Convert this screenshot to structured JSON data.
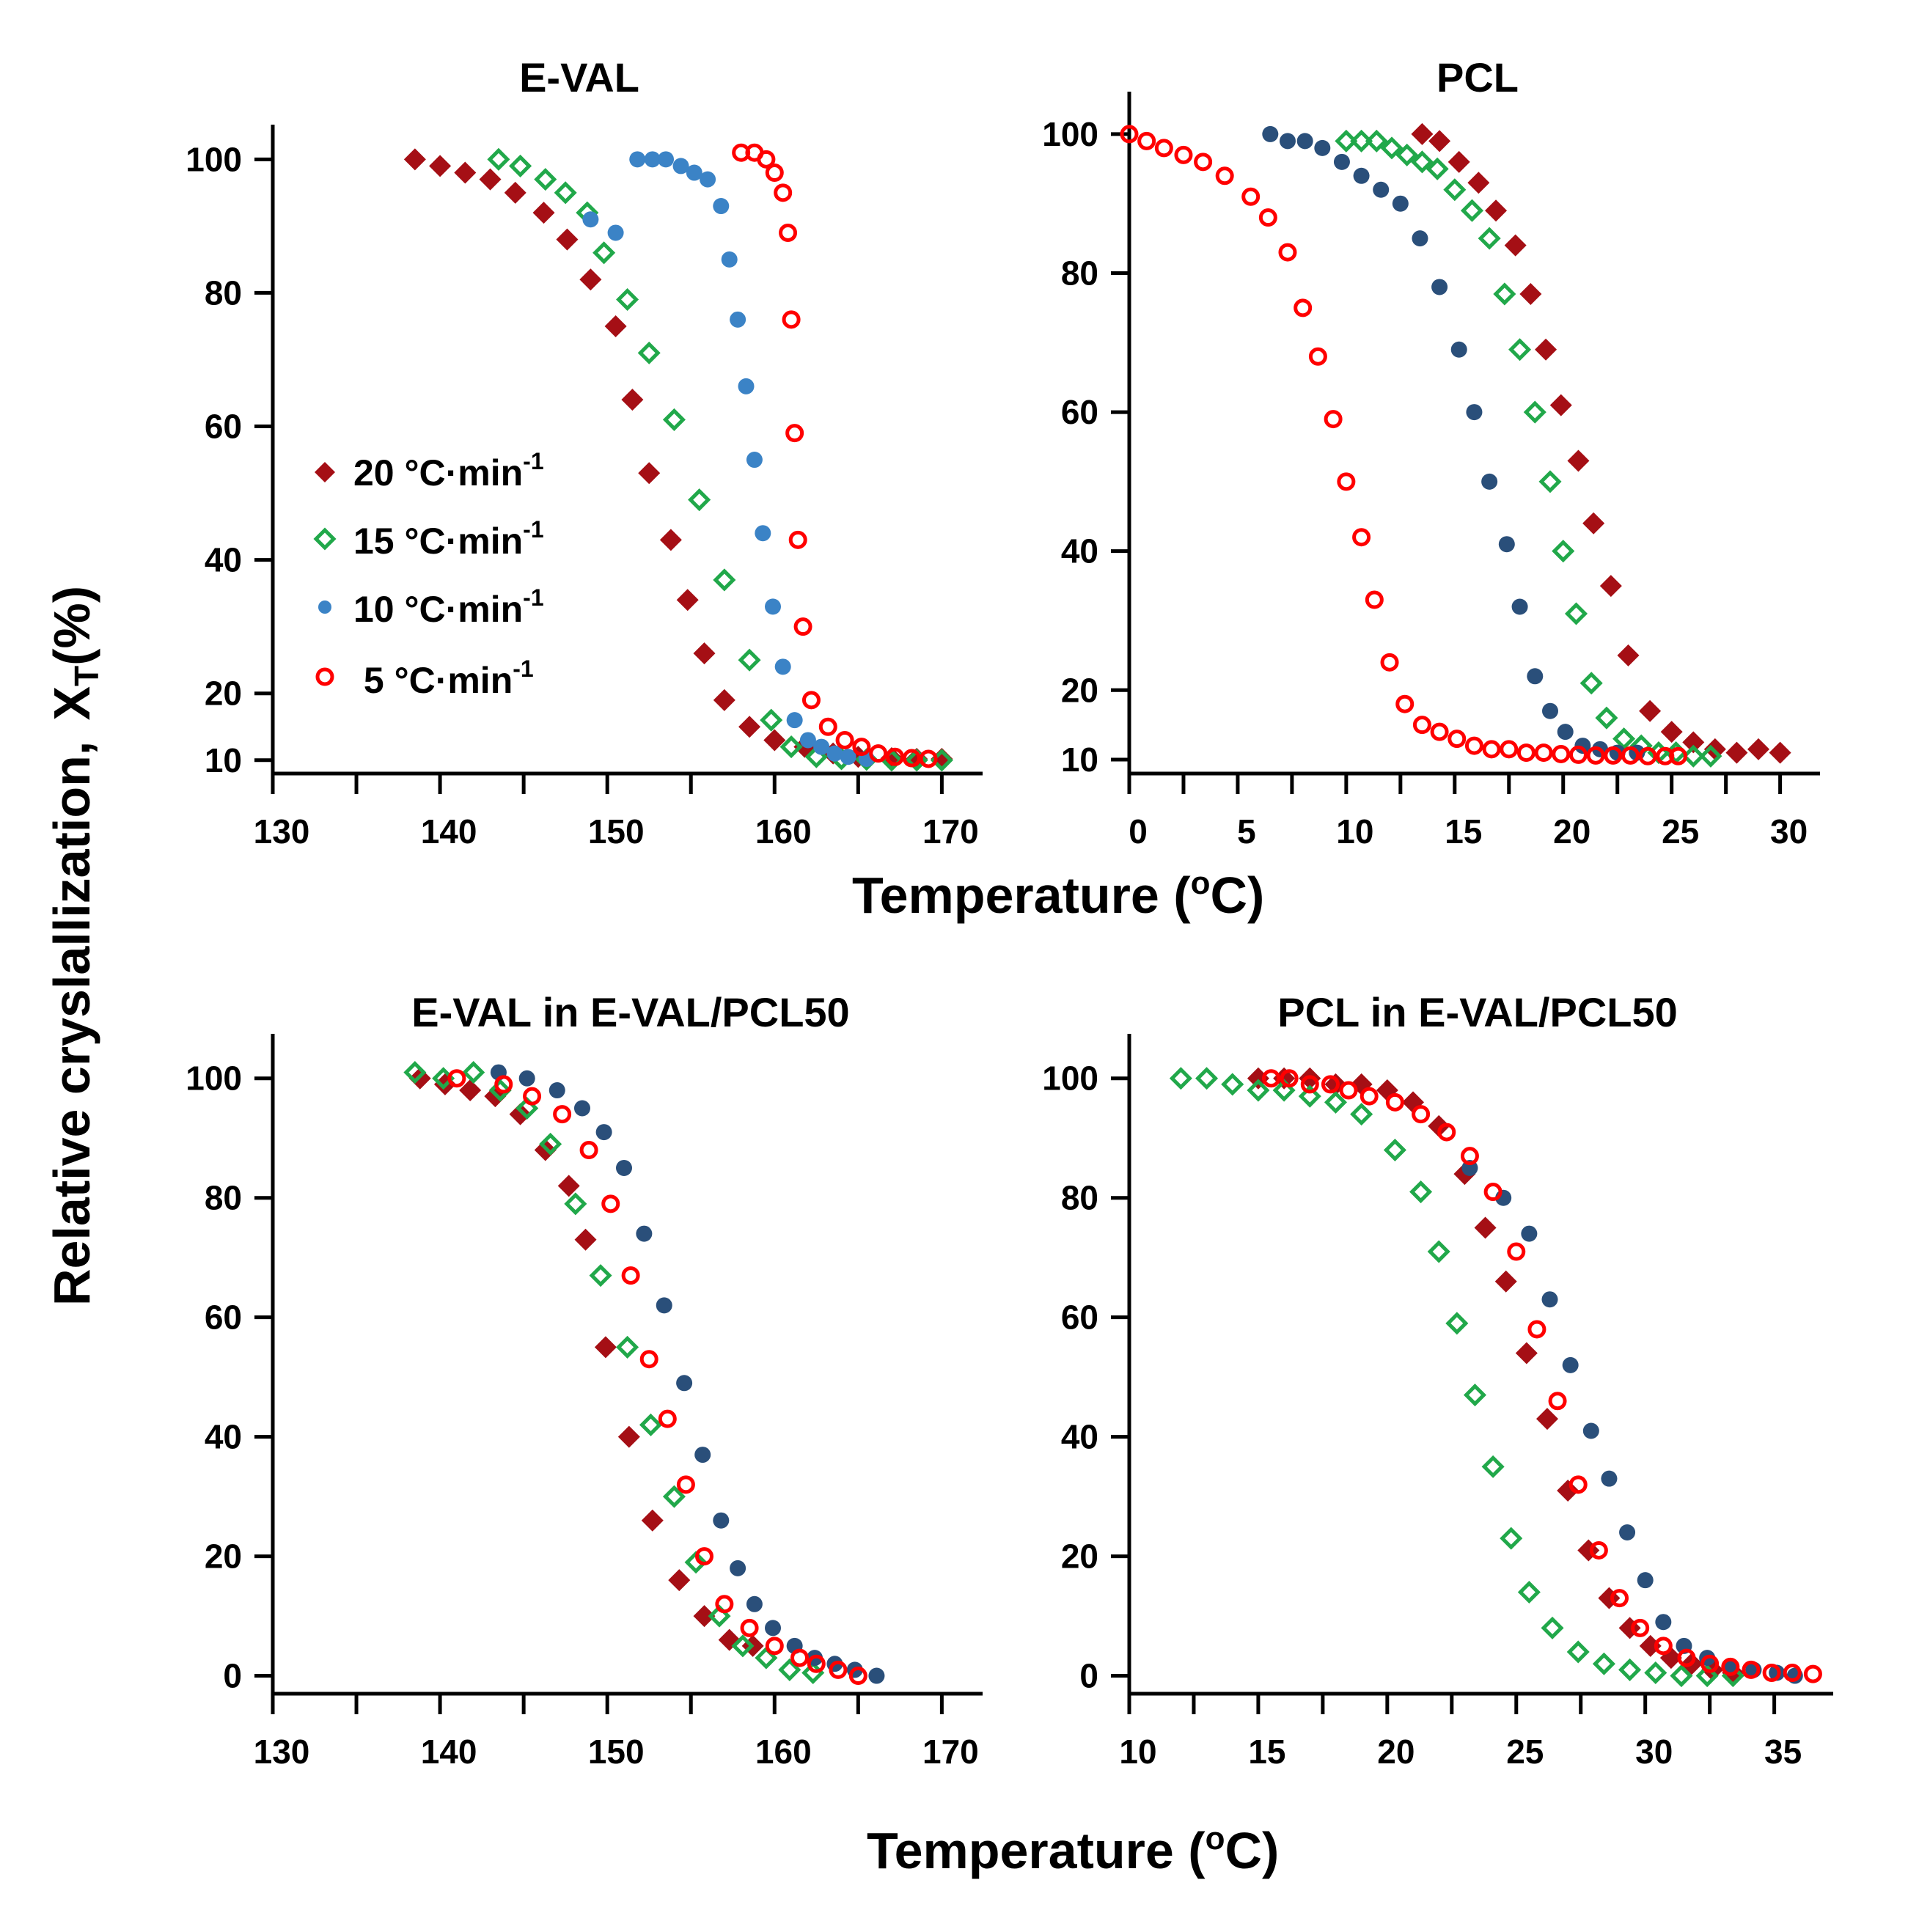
{
  "chart_data": {
    "type": "scatter",
    "ylabel_main": "Relative cryslallization,",
    "ylabel_symbol": "X",
    "ylabel_sub": "T",
    "ylabel_unit": "(%)",
    "xlabel_top": "Temperature (",
    "xlabel_bottom": "Temperature (",
    "xlabel_sup": "o",
    "xlabel_end": "C)",
    "legend": [
      {
        "label": "20 °C·min",
        "exp": "-1",
        "marker": "diamond",
        "color": "#a50f15"
      },
      {
        "label": "15 °C·min",
        "exp": "-1",
        "marker": "diamond-open",
        "color": "#21a84a"
      },
      {
        "label": "10 °C·min",
        "exp": "-1",
        "marker": "dot",
        "color": "#3b83c6"
      },
      {
        "label": " 5 °C·min",
        "exp": "-1",
        "marker": "circle-open",
        "color": "#ff0000"
      }
    ],
    "panels": [
      {
        "title": "E-VAL",
        "xlim": [
          130,
          172
        ],
        "ylim": [
          8,
          103
        ],
        "xticks": [
          130,
          140,
          150,
          160,
          170
        ],
        "xticklabels": [
          "130",
          "140",
          "150",
          "160",
          "170"
        ],
        "yticks": [
          10,
          20,
          40,
          60,
          80,
          100
        ],
        "yticklabels": [
          "10",
          "20",
          "40",
          "60",
          "80",
          "100"
        ],
        "series": [
          {
            "name": "20 °C·min-1",
            "marker": "diamond",
            "color": "#a50f15",
            "x": [
              138.5,
              140,
              141.5,
              143,
              144.5,
              146.2,
              147.6,
              149,
              150.5,
              151.5,
              152.5,
              153.8,
              154.8,
              155.8,
              157,
              158.5,
              160,
              161.8,
              163.5,
              165,
              167,
              168.5,
              170
            ],
            "y": [
              100,
              99,
              98,
              97,
              95,
              92,
              88,
              82,
              75,
              64,
              53,
              43,
              34,
              26,
              19,
              15,
              13,
              12,
              11,
              10.5,
              10.3,
              10.2,
              10.2
            ]
          },
          {
            "name": "15 °C·min-1",
            "marker": "diamond-open",
            "color": "#21a84a",
            "x": [
              143.5,
              144.8,
              146.3,
              147.5,
              148.8,
              149.8,
              151.2,
              152.5,
              154,
              155.5,
              157,
              158.5,
              159.8,
              161,
              162.5,
              164,
              165.5,
              167,
              168.5,
              170
            ],
            "y": [
              100,
              99,
              97,
              95,
              92,
              86,
              79,
              71,
              61,
              49,
              37,
              25,
              16,
              12,
              10.5,
              10.2,
              10.1,
              10,
              10,
              10
            ]
          },
          {
            "name": "10 °C·min-1",
            "marker": "dot",
            "color": "#3b83c6",
            "x": [
              149,
              150.5,
              151.8,
              152.7,
              153.5,
              154.4,
              155.2,
              156,
              156.8,
              157.3,
              157.8,
              158.3,
              158.8,
              159.3,
              159.9,
              160.5,
              161.2,
              162,
              162.8,
              163.6,
              164.4,
              165.5
            ],
            "y": [
              91,
              89,
              100,
              100,
              100,
              99,
              98,
              97,
              93,
              85,
              76,
              66,
              55,
              44,
              33,
              24,
              16,
              13,
              12,
              11,
              10.5,
              10.2
            ]
          },
          {
            "name": "5 °C·min-1",
            "marker": "circle-open",
            "color": "#ff0000",
            "x": [
              158,
              158.8,
              159.5,
              160,
              160.5,
              160.8,
              161,
              161.2,
              161.4,
              161.7,
              162.2,
              163.2,
              164.2,
              165.2,
              166.2,
              167.2,
              168.2,
              169.2
            ],
            "y": [
              101,
              101,
              100,
              98,
              95,
              89,
              76,
              59,
              43,
              30,
              19,
              15,
              13,
              12,
              11,
              10.5,
              10.3,
              10.2
            ]
          }
        ]
      },
      {
        "title": "PCL",
        "xlim": [
          0,
          31.5
        ],
        "ylim": [
          8,
          104
        ],
        "xticks": [
          0,
          5,
          10,
          15,
          20,
          25,
          30
        ],
        "xticklabels": [
          "0",
          "5",
          "10",
          "15",
          "20",
          "25",
          "30"
        ],
        "yticks": [
          10,
          20,
          40,
          60,
          80,
          100
        ],
        "yticklabels": [
          "10",
          "20",
          "40",
          "60",
          "80",
          "100"
        ],
        "series": [
          {
            "name": "20 °C·min-1",
            "marker": "diamond",
            "color": "#a50f15",
            "x": [
              13.5,
              14.3,
              15.2,
              16.1,
              16.9,
              17.8,
              18.5,
              19.2,
              19.9,
              20.7,
              21.4,
              22.2,
              23.0,
              24.0,
              25.0,
              26.0,
              27.0,
              28.0,
              29.0,
              30.0
            ],
            "y": [
              100,
              99,
              96,
              93,
              89,
              84,
              77,
              69,
              61,
              53,
              44,
              35,
              25,
              17,
              14,
              12.5,
              11.5,
              11,
              11.5,
              11
            ]
          },
          {
            "name": "15 °C·min-1",
            "marker": "diamond-open",
            "color": "#21a84a",
            "x": [
              10.0,
              10.7,
              11.4,
              12.1,
              12.8,
              13.5,
              14.2,
              15.0,
              15.8,
              16.6,
              17.3,
              18.0,
              18.7,
              19.4,
              20.0,
              20.6,
              21.3,
              22.0,
              22.8,
              23.6,
              24.4,
              25.2,
              26.0,
              26.8
            ],
            "y": [
              99,
              99,
              99,
              98,
              97,
              96,
              95,
              92,
              89,
              85,
              77,
              69,
              60,
              50,
              40,
              31,
              21,
              16,
              13,
              12,
              11,
              11,
              10.5,
              10.5
            ]
          },
          {
            "name": "10 °C·min-1",
            "marker": "dot",
            "color": "#2a4f7a",
            "x": [
              6.5,
              7.3,
              8.1,
              8.9,
              9.8,
              10.7,
              11.6,
              12.5,
              13.4,
              14.3,
              15.2,
              15.9,
              16.6,
              17.4,
              18.0,
              18.7,
              19.4,
              20.1,
              20.9,
              21.7,
              22.5,
              23.4
            ],
            "y": [
              100,
              99,
              99,
              98,
              96,
              94,
              92,
              90,
              85,
              78,
              69,
              60,
              50,
              41,
              32,
              22,
              17,
              14,
              12,
              11.5,
              11,
              11
            ]
          },
          {
            "name": "5 °C·min-1",
            "marker": "circle-open",
            "color": "#ff0000",
            "x": [
              0,
              0.8,
              1.6,
              2.5,
              3.4,
              4.4,
              5.6,
              6.4,
              7.3,
              8.0,
              8.7,
              9.4,
              10.0,
              10.7,
              11.3,
              12.0,
              12.7,
              13.5,
              14.3,
              15.1,
              15.9,
              16.7,
              17.5,
              18.3,
              19.1,
              19.9,
              20.7,
              21.5,
              22.3,
              23.1,
              23.9,
              24.7,
              25.3
            ],
            "y": [
              100,
              99,
              98,
              97,
              96,
              94,
              91,
              88,
              83,
              75,
              68,
              59,
              50,
              42,
              33,
              24,
              18,
              15,
              14,
              13,
              12,
              11.5,
              11.5,
              11,
              11,
              10.8,
              10.7,
              10.6,
              10.6,
              10.6,
              10.5,
              10.5,
              10.5
            ]
          }
        ]
      },
      {
        "title": "E-VAL in E-VAL/PCL50",
        "xlim": [
          130,
          172
        ],
        "ylim": [
          -3,
          105
        ],
        "xticks": [
          130,
          140,
          150,
          160,
          170
        ],
        "xticklabels": [
          "130",
          "140",
          "150",
          "160",
          "170"
        ],
        "yticks": [
          0,
          20,
          40,
          60,
          80,
          100
        ],
        "yticklabels": [
          "0",
          "20",
          "40",
          "60",
          "80",
          "100"
        ],
        "series": [
          {
            "name": "20 °C·min-1",
            "marker": "diamond",
            "color": "#a50f15",
            "x": [
              138.8,
              140.3,
              141.8,
              143.3,
              144.8,
              146.3,
              147.7,
              148.7,
              149.9,
              151.3,
              152.7,
              154.3,
              155.8,
              157.3,
              158.7
            ],
            "y": [
              100,
              99,
              98,
              97,
              94,
              88,
              82,
              73,
              55,
              40,
              26,
              16,
              10,
              6,
              5
            ]
          },
          {
            "name": "15 °C·min-1",
            "marker": "diamond-open",
            "color": "#21a84a",
            "x": [
              138.5,
              140.2,
              142,
              143.6,
              145.2,
              146.6,
              148.1,
              149.6,
              151.2,
              152.6,
              154,
              155.3,
              156.7,
              158.1,
              159.5,
              160.9,
              162.3
            ],
            "y": [
              101,
              100,
              101,
              98,
              95,
              89,
              79,
              67,
              55,
              42,
              30,
              19,
              10,
              5,
              3,
              1,
              0.5
            ]
          },
          {
            "name": "10 °C·min-1",
            "marker": "dot",
            "color": "#2a4f7a",
            "x": [
              143.5,
              145.2,
              147,
              148.5,
              149.8,
              151,
              152.2,
              153.4,
              154.6,
              155.7,
              156.8,
              157.8,
              158.8,
              159.9,
              161.2,
              162.4,
              163.6,
              164.8,
              166.1
            ],
            "y": [
              101,
              100,
              98,
              95,
              91,
              85,
              74,
              62,
              49,
              37,
              26,
              18,
              12,
              8,
              5,
              3,
              2,
              1,
              0
            ]
          },
          {
            "name": "5 °C·min-1",
            "marker": "circle-open",
            "color": "#ff0000",
            "x": [
              141,
              143.8,
              145.5,
              147.3,
              148.9,
              150.2,
              151.4,
              152.5,
              153.6,
              154.7,
              155.8,
              157,
              158.5,
              160,
              161.5,
              162.5,
              163.8,
              165
            ],
            "y": [
              100,
              99,
              97,
              94,
              88,
              79,
              67,
              53,
              43,
              32,
              20,
              12,
              8,
              5,
              3,
              2,
              1,
              0
            ]
          }
        ]
      },
      {
        "title": "PCL in E-VAL/PCL50",
        "xlim": [
          10,
          37
        ],
        "ylim": [
          -3,
          105
        ],
        "xticks": [
          10,
          15,
          20,
          25,
          30,
          35
        ],
        "xticklabels": [
          "10",
          "15",
          "20",
          "25",
          "30",
          "35"
        ],
        "yticks": [
          0,
          20,
          40,
          60,
          80,
          100
        ],
        "yticklabels": [
          "0",
          "20",
          "40",
          "60",
          "80",
          "100"
        ],
        "series": [
          {
            "name": "20 °C·min-1",
            "marker": "diamond",
            "color": "#a50f15",
            "x": [
              15,
              16,
              17,
              18,
              19,
              20,
              21,
              22,
              23,
              23.8,
              24.6,
              25.4,
              26.2,
              27.0,
              27.8,
              28.6,
              29.4,
              30.2,
              31.0,
              31.8,
              32.6,
              33.4
            ],
            "y": [
              100,
              100,
              100,
              99,
              99,
              98,
              96,
              92,
              84,
              75,
              66,
              54,
              43,
              31,
              21,
              13,
              8,
              5,
              3,
              2,
              1,
              0.5
            ]
          },
          {
            "name": "15 °C·min-1",
            "marker": "diamond-open",
            "color": "#21a84a",
            "x": [
              12,
              13,
              14,
              15,
              16,
              17,
              18,
              19,
              20.3,
              21.3,
              22,
              22.7,
              23.4,
              24.1,
              24.8,
              25.5,
              26.4,
              27.4,
              28.4,
              29.4,
              30.4,
              31.4,
              32.4,
              33.4
            ],
            "y": [
              100,
              100,
              99,
              98,
              98,
              97,
              96,
              94,
              88,
              81,
              71,
              59,
              47,
              35,
              23,
              14,
              8,
              4,
              2,
              1,
              0.5,
              0,
              0,
              0
            ]
          },
          {
            "name": "10 °C·min-1",
            "marker": "dot",
            "color": "#2a4f7a",
            "x": [
              23.2,
              24.5,
              25.5,
              26.3,
              27.1,
              27.9,
              28.6,
              29.3,
              30.0,
              30.7,
              31.5,
              32.4,
              33.3,
              34.2,
              35.1,
              35.8
            ],
            "y": [
              85,
              80,
              74,
              63,
              52,
              41,
              33,
              24,
              16,
              9,
              5,
              3,
              1.5,
              1,
              0.5,
              0
            ]
          },
          {
            "name": "5 °C·min-1",
            "marker": "circle-open",
            "color": "#ff0000",
            "x": [
              15.5,
              16.2,
              17,
              17.8,
              18.5,
              19.3,
              20.3,
              21.3,
              22.3,
              23.2,
              24.1,
              25.0,
              25.8,
              26.6,
              27.4,
              28.2,
              29.0,
              29.8,
              30.7,
              31.6,
              32.5,
              33.3,
              34.1,
              34.9,
              35.7,
              36.5
            ],
            "y": [
              100,
              100,
              99,
              99,
              98,
              97,
              96,
              94,
              91,
              87,
              81,
              71,
              58,
              46,
              32,
              21,
              13,
              8,
              5,
              3,
              2,
              1.5,
              1,
              0.5,
              0.5,
              0.3
            ]
          }
        ]
      }
    ]
  }
}
